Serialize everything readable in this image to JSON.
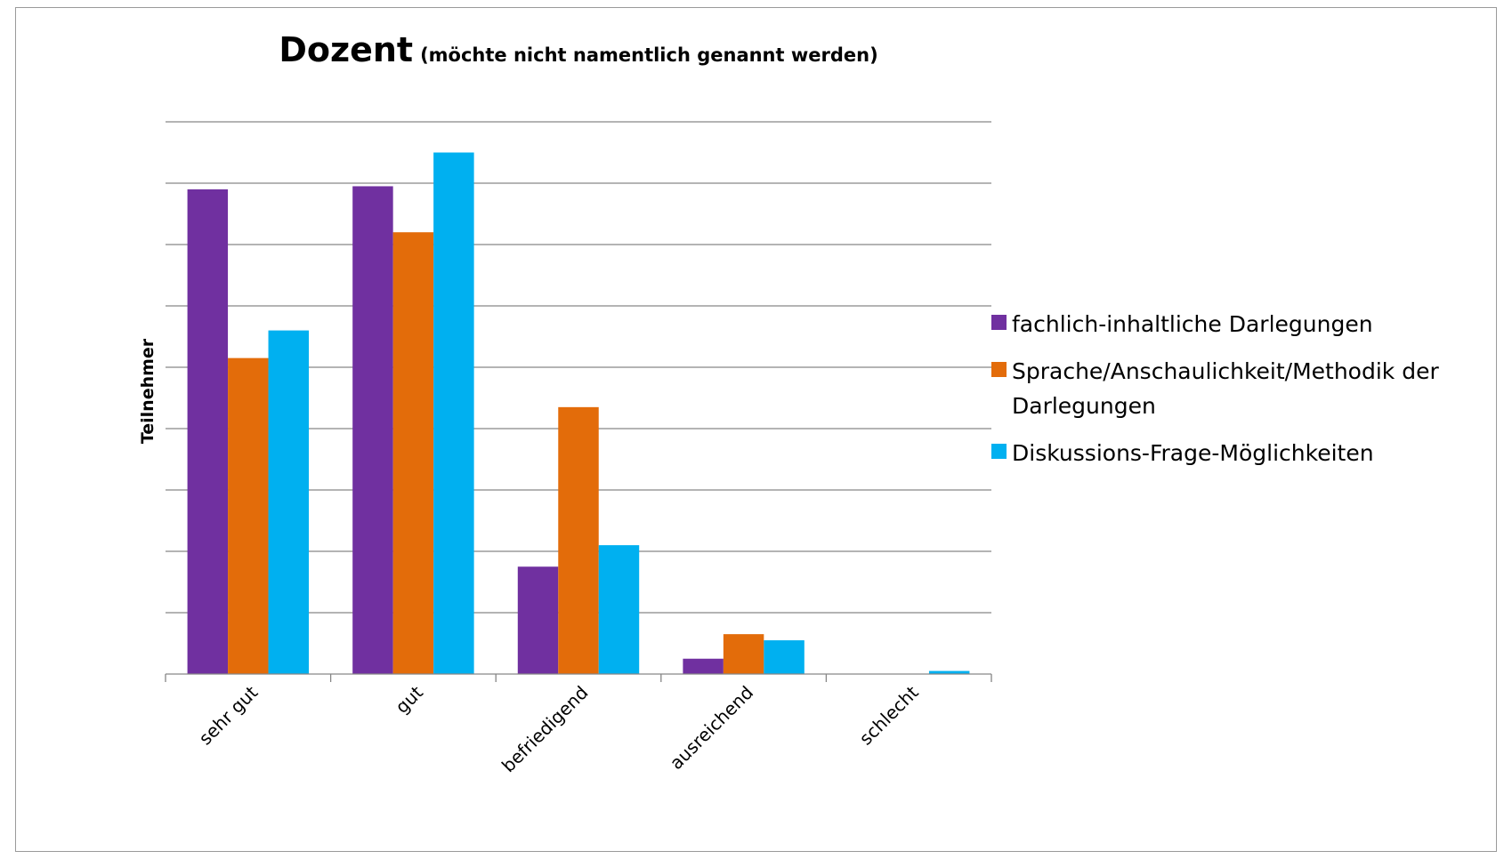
{
  "chart_data": {
    "type": "bar",
    "title": "Dozent",
    "subtitle": "(möchte nicht namentlich genannt werden)",
    "xlabel": "",
    "ylabel": "Teilnehmer",
    "categories": [
      "sehr gut",
      "gut",
      "befriedigend",
      "ausreichend",
      "schlecht"
    ],
    "series": [
      {
        "name": "fachlich-inhaltliche Darlegungen",
        "color": "#7030A0",
        "values": [
          7.9,
          7.95,
          1.75,
          0.25,
          0
        ]
      },
      {
        "name": "Sprache/Anschaulichkeit/Methodik der Darlegungen",
        "color": "#E36C0A",
        "values": [
          5.15,
          7.2,
          4.35,
          0.65,
          0
        ]
      },
      {
        "name": "Diskussions-Frage-Möglichkeiten",
        "color": "#00B0F0",
        "values": [
          5.6,
          8.5,
          2.1,
          0.55,
          0.05
        ]
      }
    ],
    "ylim": [
      0,
      9
    ],
    "ytick_step": 1,
    "ytick_labels_shown": false,
    "grid": true,
    "legend": "right"
  }
}
